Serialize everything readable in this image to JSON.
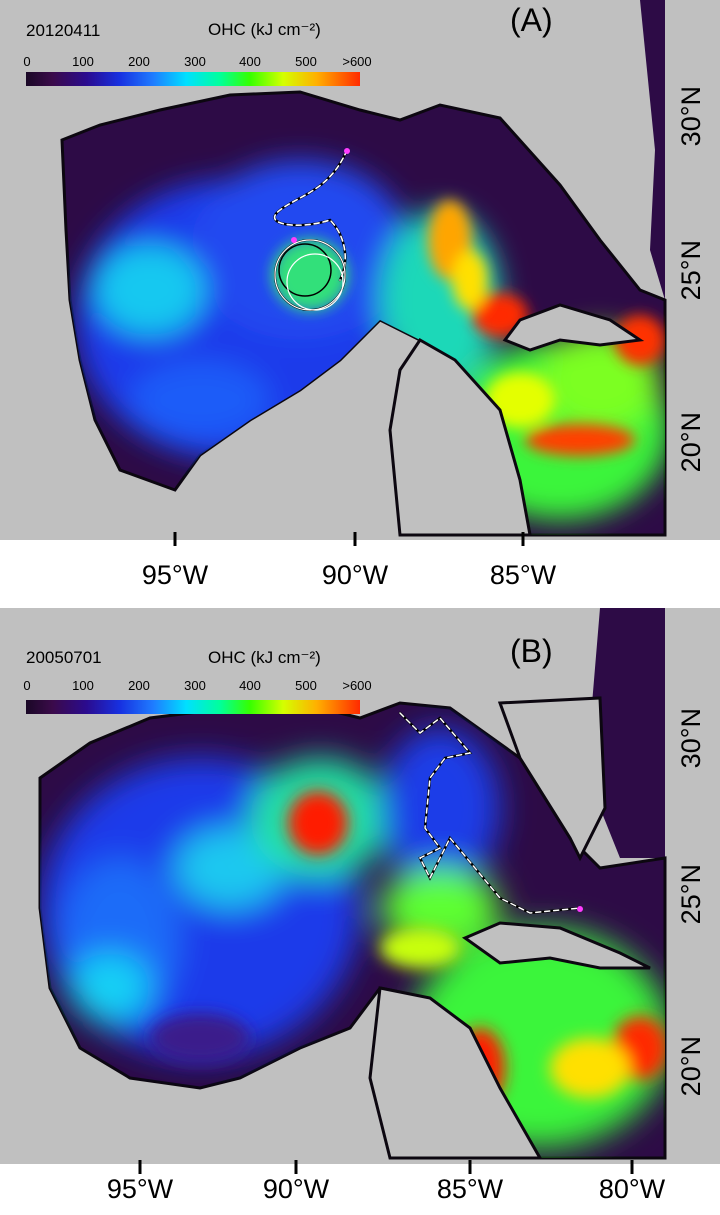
{
  "panels": [
    {
      "label": "(A)",
      "date": "20120411",
      "colorbar": {
        "title": "OHC (kJ cm⁻²)",
        "ticks": [
          "0",
          "100",
          "200",
          "300",
          "400",
          "500",
          ">600"
        ]
      },
      "lon_labels": [
        "95°W",
        "90°W",
        "85°W"
      ],
      "lat_labels": [
        "30°N",
        "25°N",
        "20°N"
      ]
    },
    {
      "label": "(B)",
      "date": "20050701",
      "colorbar": {
        "title": "OHC (kJ cm⁻²)",
        "ticks": [
          "0",
          "100",
          "200",
          "300",
          "400",
          "500",
          ">600"
        ]
      },
      "lon_labels": [
        "95°W",
        "90°W",
        "85°W",
        "80°W"
      ],
      "lat_labels": [
        "30°N",
        "25°N",
        "20°N"
      ]
    }
  ],
  "colors": {
    "land": "#c0c0c0",
    "coast": "#0c0710",
    "shelf": "#2d0b46"
  }
}
